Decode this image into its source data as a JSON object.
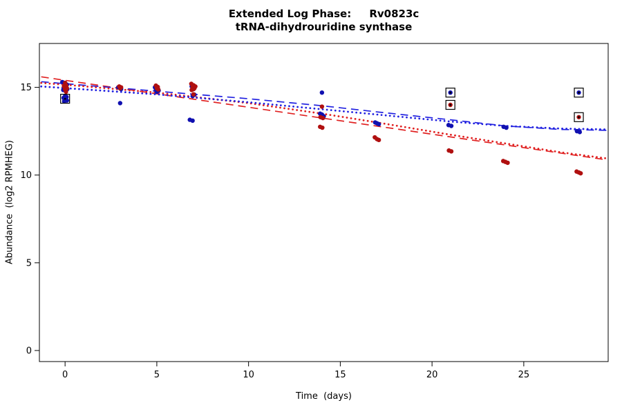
{
  "chart_data": {
    "type": "scatter",
    "title": "Extended Log Phase:     Rv0823c",
    "subtitle": "tRNA-dihydrouridine synthase",
    "xlabel": "Time  (days)",
    "ylabel": "Abundance  (log2 RPMHEG)",
    "xlim": [
      -1.4,
      29.6
    ],
    "ylim": [
      -0.63,
      17.5
    ],
    "xticks": [
      0,
      5,
      10,
      15,
      20,
      25
    ],
    "yticks": [
      0,
      5,
      10,
      15
    ],
    "grid": false,
    "legend": "none",
    "colors": {
      "red": "#b01010",
      "blue": "#1010b0"
    },
    "series": [
      {
        "name": "blue",
        "color": "#1010b0",
        "points": [
          [
            -0.15,
            15.3
          ],
          [
            0.0,
            15.25
          ],
          [
            0.1,
            15.15
          ],
          [
            -0.05,
            15.05
          ],
          [
            0.05,
            14.95
          ],
          [
            0.12,
            14.9
          ],
          [
            -0.1,
            14.85
          ],
          [
            0.0,
            14.5
          ],
          [
            0.08,
            14.45
          ],
          [
            -0.08,
            14.4
          ],
          [
            0.1,
            14.25
          ],
          [
            -0.05,
            14.2
          ],
          [
            2.9,
            15.0
          ],
          [
            3.0,
            14.95
          ],
          [
            3.05,
            14.9
          ],
          [
            3.0,
            14.1
          ],
          [
            4.9,
            15.0
          ],
          [
            5.0,
            14.97
          ],
          [
            5.05,
            14.92
          ],
          [
            4.95,
            14.87
          ],
          [
            5.1,
            14.82
          ],
          [
            5.0,
            14.75
          ],
          [
            6.9,
            15.05
          ],
          [
            7.0,
            14.9
          ],
          [
            7.05,
            14.58
          ],
          [
            6.95,
            14.5
          ],
          [
            6.8,
            13.15
          ],
          [
            6.95,
            13.1
          ],
          [
            14.0,
            14.7
          ],
          [
            13.9,
            13.5
          ],
          [
            14.0,
            13.45
          ],
          [
            14.1,
            13.35
          ],
          [
            16.9,
            13.0
          ],
          [
            17.0,
            12.95
          ],
          [
            17.1,
            12.9
          ],
          [
            20.9,
            12.85
          ],
          [
            21.05,
            12.8
          ],
          [
            23.9,
            12.75
          ],
          [
            24.05,
            12.7
          ],
          [
            27.9,
            12.5
          ],
          [
            28.05,
            12.45
          ]
        ]
      },
      {
        "name": "red",
        "color": "#b01010",
        "points": [
          [
            0.0,
            15.25
          ],
          [
            0.06,
            15.1
          ],
          [
            -0.06,
            15.05
          ],
          [
            0.1,
            14.95
          ],
          [
            0.0,
            14.88
          ],
          [
            0.05,
            14.75
          ],
          [
            2.95,
            15.05
          ],
          [
            3.05,
            15.0
          ],
          [
            3.0,
            14.95
          ],
          [
            4.95,
            15.1
          ],
          [
            5.05,
            15.02
          ],
          [
            5.0,
            14.95
          ],
          [
            5.08,
            14.88
          ],
          [
            6.88,
            15.2
          ],
          [
            7.0,
            15.12
          ],
          [
            7.1,
            15.05
          ],
          [
            6.95,
            15.0
          ],
          [
            7.05,
            14.95
          ],
          [
            7.0,
            14.9
          ],
          [
            6.9,
            14.85
          ],
          [
            7.0,
            14.6
          ],
          [
            14.0,
            13.9
          ],
          [
            13.92,
            13.3
          ],
          [
            14.05,
            13.25
          ],
          [
            13.9,
            12.75
          ],
          [
            14.02,
            12.7
          ],
          [
            16.88,
            12.15
          ],
          [
            17.0,
            12.05
          ],
          [
            17.1,
            12.0
          ],
          [
            20.92,
            11.4
          ],
          [
            21.05,
            11.35
          ],
          [
            23.88,
            10.8
          ],
          [
            24.0,
            10.75
          ],
          [
            24.12,
            10.7
          ],
          [
            27.88,
            10.2
          ],
          [
            28.0,
            10.15
          ],
          [
            28.1,
            10.1
          ]
        ]
      }
    ],
    "flagged_points": [
      {
        "x": 0.0,
        "y": 14.35,
        "series": "blue"
      },
      {
        "x": 21.0,
        "y": 14.7,
        "series": "blue"
      },
      {
        "x": 21.0,
        "y": 14.0,
        "series": "red"
      },
      {
        "x": 28.0,
        "y": 14.7,
        "series": "blue"
      },
      {
        "x": 28.0,
        "y": 13.3,
        "series": "red"
      }
    ],
    "trend_lines": [
      {
        "name": "red-dashed",
        "color": "#e02020",
        "style": "dashed",
        "points": [
          [
            -1.3,
            15.6
          ],
          [
            29.5,
            10.87
          ]
        ]
      },
      {
        "name": "blue-dashed",
        "color": "#2020e0",
        "style": "dashed",
        "points": [
          [
            -1.3,
            15.32
          ],
          [
            5,
            14.78
          ],
          [
            10,
            14.35
          ],
          [
            14,
            13.95
          ],
          [
            17,
            13.6
          ],
          [
            21,
            13.15
          ],
          [
            24,
            12.8
          ],
          [
            27,
            12.6
          ],
          [
            29.5,
            12.55
          ]
        ]
      },
      {
        "name": "red-dotted",
        "color": "#e02020",
        "style": "dotted",
        "points": [
          [
            -1.3,
            15.25
          ],
          [
            0,
            15.15
          ],
          [
            5,
            14.7
          ],
          [
            10,
            14.1
          ],
          [
            14,
            13.5
          ],
          [
            17,
            13.0
          ],
          [
            21,
            12.3
          ],
          [
            24,
            11.8
          ],
          [
            27,
            11.3
          ],
          [
            29.5,
            10.95
          ]
        ]
      },
      {
        "name": "blue-dotted",
        "color": "#2020e0",
        "style": "dotted",
        "points": [
          [
            -1.3,
            15.05
          ],
          [
            5,
            14.6
          ],
          [
            10,
            14.15
          ],
          [
            14,
            13.75
          ],
          [
            17,
            13.45
          ],
          [
            21,
            13.05
          ],
          [
            24,
            12.8
          ],
          [
            27,
            12.65
          ],
          [
            29.5,
            12.6
          ]
        ]
      }
    ]
  }
}
